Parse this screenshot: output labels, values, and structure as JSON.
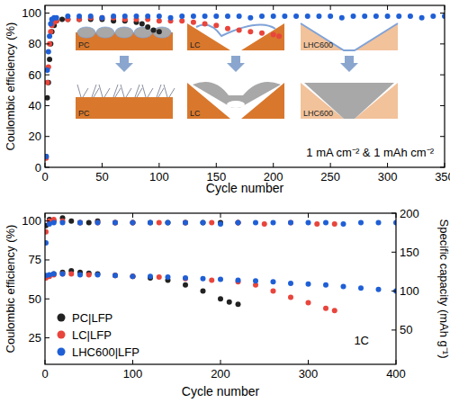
{
  "chart_data": [
    {
      "type": "scatter",
      "x_label": "Cycle number",
      "y_label": "Coulombic efficiency (%)",
      "xlim": [
        0,
        350
      ],
      "xticks": [
        0,
        50,
        100,
        150,
        200,
        250,
        300,
        350
      ],
      "ylim": [
        0,
        105
      ],
      "yticks": [
        0,
        20,
        40,
        60,
        80,
        100
      ],
      "grid": false,
      "marker": "circle",
      "annotations": [
        "1 mA cm⁻² & 1 mAh cm⁻²"
      ],
      "insets": [
        {
          "label": "PC"
        },
        {
          "label": "LC"
        },
        {
          "label": "LHC600"
        }
      ],
      "series": [
        {
          "color": "#222222",
          "x": [
            1,
            2,
            3,
            4,
            5,
            6,
            8,
            10,
            15,
            20,
            30,
            40,
            50,
            60,
            70,
            80,
            85,
            90,
            95,
            100
          ],
          "values": [
            7,
            45,
            55,
            70,
            80,
            88,
            92,
            95,
            96,
            96,
            96,
            96,
            96,
            95,
            95,
            94,
            93,
            91,
            89,
            88
          ]
        },
        {
          "color": "#e8453c",
          "x": [
            1,
            2,
            3,
            4,
            5,
            6,
            8,
            10,
            20,
            30,
            40,
            50,
            60,
            70,
            80,
            90,
            100,
            110,
            120,
            130,
            140,
            150,
            160,
            170,
            180,
            190,
            200,
            205
          ],
          "values": [
            6,
            55,
            65,
            80,
            88,
            92,
            94,
            95,
            96,
            96,
            97,
            97,
            97,
            96,
            96,
            96,
            95,
            95,
            95,
            94,
            93,
            92,
            90,
            89,
            88,
            87,
            86,
            85
          ]
        },
        {
          "color": "#1f5fd6",
          "x": [
            1,
            2,
            3,
            4,
            5,
            6,
            8,
            10,
            20,
            30,
            40,
            50,
            60,
            70,
            80,
            90,
            100,
            110,
            120,
            130,
            140,
            150,
            160,
            170,
            180,
            190,
            200,
            210,
            220,
            230,
            240,
            250,
            260,
            270,
            280,
            290,
            300,
            310,
            320,
            330,
            340,
            350
          ],
          "values": [
            7,
            63,
            75,
            85,
            93,
            96,
            97,
            97,
            98,
            98,
            98,
            97,
            98,
            98,
            98,
            98,
            98,
            97,
            98,
            98,
            98,
            98,
            98,
            98,
            97,
            98,
            98,
            98,
            98,
            98,
            98,
            98,
            97,
            98,
            98,
            98,
            98,
            98,
            98,
            97,
            98,
            98
          ]
        }
      ]
    },
    {
      "type": "scatter",
      "x_label": "Cycle number",
      "y_label": "Coulombic efficiency (%)",
      "y2_label": "Specific capacity (mAh g⁻¹)",
      "xlim": [
        0,
        400
      ],
      "xticks": [
        0,
        100,
        200,
        300,
        400
      ],
      "ylim": [
        8,
        105
      ],
      "yticks": [
        25,
        50,
        75,
        100
      ],
      "y2lim": [
        6,
        200
      ],
      "y2ticks": [
        50,
        100,
        150,
        200
      ],
      "grid": false,
      "marker": "circle",
      "legend": "lower left",
      "annotations": [
        "1C"
      ],
      "series": [
        {
          "color": "#222222",
          "x": [
            1,
            5,
            10,
            20,
            30,
            40,
            50,
            60,
            80,
            100,
            120,
            140,
            160,
            180,
            200,
            220
          ],
          "values": [
            97,
            101,
            100,
            102,
            100,
            99,
            99,
            100,
            99,
            99,
            99,
            99,
            99,
            99,
            99,
            99
          ]
        },
        {
          "color": "#e8453c",
          "x": [
            1,
            5,
            10,
            20,
            40,
            60,
            80,
            100,
            130,
            160,
            190,
            220,
            250,
            280,
            310,
            330
          ],
          "values": [
            93,
            100,
            101,
            100,
            99,
            99,
            99,
            99,
            99,
            99,
            99,
            99,
            98,
            99,
            98,
            98
          ]
        },
        {
          "color": "#1f5fd6",
          "x": [
            1,
            5,
            10,
            20,
            40,
            60,
            80,
            100,
            120,
            140,
            160,
            180,
            200,
            220,
            240,
            260,
            280,
            300,
            320,
            340,
            360,
            380,
            400
          ],
          "values": [
            86,
            98,
            99,
            99,
            99,
            99,
            99,
            99,
            99,
            99,
            99,
            99,
            98,
            99,
            99,
            99,
            99,
            99,
            99,
            98,
            99,
            99,
            99
          ]
        },
        {
          "name": "PC|LFP",
          "color": "#222222",
          "axis": "y2",
          "x": [
            1,
            5,
            10,
            20,
            30,
            40,
            50,
            60,
            80,
            100,
            120,
            140,
            160,
            180,
            200,
            210,
            220
          ],
          "values": [
            118,
            120,
            122,
            124,
            126,
            124,
            123,
            122,
            120,
            119,
            117,
            114,
            108,
            100,
            90,
            86,
            83
          ]
        },
        {
          "name": "LC|LFP",
          "color": "#e8453c",
          "axis": "y2",
          "x": [
            1,
            5,
            10,
            20,
            30,
            50,
            80,
            100,
            130,
            160,
            190,
            220,
            240,
            260,
            280,
            300,
            320,
            330
          ],
          "values": [
            117,
            119,
            121,
            122,
            122,
            121,
            120,
            119,
            118,
            116,
            114,
            112,
            108,
            100,
            92,
            85,
            78,
            75
          ]
        },
        {
          "name": "LHC600|LFP",
          "color": "#1f5fd6",
          "axis": "y2",
          "x": [
            1,
            5,
            10,
            20,
            40,
            60,
            80,
            100,
            120,
            140,
            160,
            180,
            200,
            220,
            240,
            260,
            280,
            300,
            320,
            340,
            360,
            380,
            400
          ],
          "values": [
            120,
            121,
            122,
            122,
            121,
            121,
            120,
            119,
            119,
            118,
            117,
            116,
            115,
            114,
            113,
            112,
            110,
            109,
            108,
            106,
            104,
            102,
            100
          ]
        }
      ]
    }
  ]
}
